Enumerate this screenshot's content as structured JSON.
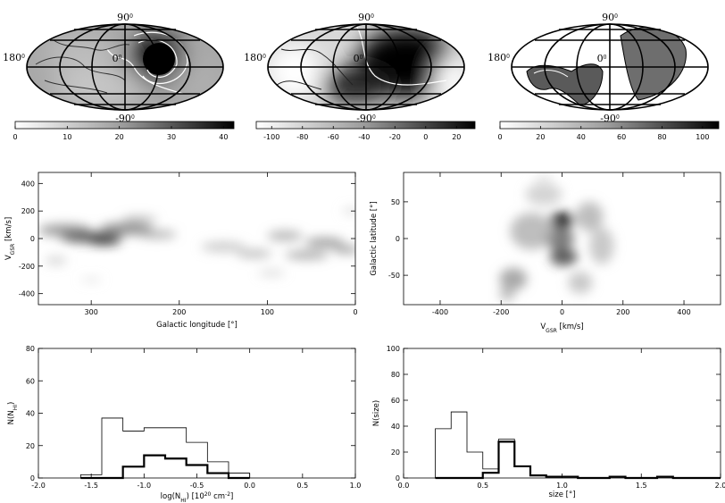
{
  "sky_maps": [
    {
      "labels": {
        "top": "90",
        "bottom": "-90",
        "left": "180",
        "center": "0",
        "deg": "0"
      },
      "colorbar": {
        "ticks": [
          "0",
          "10",
          "20",
          "30",
          "40"
        ],
        "range": [
          0,
          42
        ]
      }
    },
    {
      "labels": {
        "top": "90",
        "bottom": "-90",
        "left": "180",
        "center": "0",
        "deg": "0"
      },
      "colorbar": {
        "ticks": [
          "-100",
          "-80",
          "-60",
          "-40",
          "-20",
          "0",
          "20"
        ],
        "range": [
          -110,
          32
        ]
      }
    },
    {
      "labels": {
        "top": "90",
        "bottom": "-90",
        "left": "180",
        "center": "0",
        "deg": "0"
      },
      "colorbar": {
        "ticks": [
          "0",
          "20",
          "40",
          "60",
          "80",
          "100"
        ],
        "range": [
          0,
          108
        ]
      }
    }
  ],
  "chart_data": [
    {
      "type": "heatmap",
      "xlabel": "Galactic longitude [°]",
      "ylabel": "V",
      "ylabel_sub": "GSR",
      "ylabel_unit": "[km/s]",
      "xlim": [
        360,
        0
      ],
      "ylim": [
        -480,
        480
      ],
      "xticks": [
        300,
        200,
        100,
        0
      ],
      "yticks": [
        400,
        200,
        0,
        -200,
        -400
      ],
      "blobs": [
        {
          "x": 330,
          "y": 60,
          "sx": 30,
          "sy": 45,
          "w": 0.45
        },
        {
          "x": 300,
          "y": 10,
          "sx": 35,
          "sy": 40,
          "w": 0.75
        },
        {
          "x": 285,
          "y": -20,
          "sx": 18,
          "sy": 25,
          "w": 0.9
        },
        {
          "x": 260,
          "y": 70,
          "sx": 30,
          "sy": 45,
          "w": 0.5
        },
        {
          "x": 245,
          "y": 140,
          "sx": 20,
          "sy": 25,
          "w": 0.3
        },
        {
          "x": 225,
          "y": 30,
          "sx": 22,
          "sy": 30,
          "w": 0.35
        },
        {
          "x": 340,
          "y": -160,
          "sx": 12,
          "sy": 30,
          "w": 0.2
        },
        {
          "x": 300,
          "y": -300,
          "sx": 12,
          "sy": 15,
          "w": 0.15
        },
        {
          "x": 150,
          "y": -60,
          "sx": 25,
          "sy": 35,
          "w": 0.25
        },
        {
          "x": 115,
          "y": -110,
          "sx": 20,
          "sy": 30,
          "w": 0.3
        },
        {
          "x": 80,
          "y": 20,
          "sx": 20,
          "sy": 35,
          "w": 0.35
        },
        {
          "x": 55,
          "y": -120,
          "sx": 25,
          "sy": 30,
          "w": 0.4
        },
        {
          "x": 35,
          "y": -30,
          "sx": 22,
          "sy": 35,
          "w": 0.45
        },
        {
          "x": 10,
          "y": -80,
          "sx": 15,
          "sy": 30,
          "w": 0.4
        },
        {
          "x": 5,
          "y": 200,
          "sx": 10,
          "sy": 25,
          "w": 0.15
        },
        {
          "x": 95,
          "y": -250,
          "sx": 15,
          "sy": 20,
          "w": 0.2
        }
      ]
    },
    {
      "type": "heatmap",
      "xlabel": "V",
      "xlabel_sub": "GSR",
      "xlabel_unit": "[km/s]",
      "ylabel": "Galactic latitude [°]",
      "xlim": [
        -520,
        520
      ],
      "ylim": [
        -90,
        90
      ],
      "xticks": [
        -400,
        -200,
        0,
        200,
        400
      ],
      "yticks": [
        50,
        0,
        -50
      ],
      "blobs": [
        {
          "x": 0,
          "y": 25,
          "sx": 40,
          "sy": 12,
          "w": 0.95
        },
        {
          "x": -10,
          "y": 0,
          "sx": 50,
          "sy": 15,
          "w": 0.6
        },
        {
          "x": 5,
          "y": -25,
          "sx": 45,
          "sy": 12,
          "w": 0.75
        },
        {
          "x": -100,
          "y": 10,
          "sx": 70,
          "sy": 25,
          "w": 0.3
        },
        {
          "x": -160,
          "y": -55,
          "sx": 45,
          "sy": 15,
          "w": 0.4
        },
        {
          "x": -180,
          "y": -75,
          "sx": 25,
          "sy": 10,
          "w": 0.3
        },
        {
          "x": 90,
          "y": 30,
          "sx": 45,
          "sy": 20,
          "w": 0.3
        },
        {
          "x": 130,
          "y": -10,
          "sx": 40,
          "sy": 25,
          "w": 0.25
        },
        {
          "x": -60,
          "y": 60,
          "sx": 60,
          "sy": 15,
          "w": 0.2
        },
        {
          "x": 60,
          "y": -60,
          "sx": 40,
          "sy": 15,
          "w": 0.25
        },
        {
          "x": -60,
          "y": 80,
          "sx": 30,
          "sy": 8,
          "w": 0.1
        }
      ]
    },
    {
      "type": "bar",
      "xlabel": "log(N",
      "xlabel_sub": "HI",
      "xlabel_unit": ") [10",
      "xlabel_sup": "20",
      "xlabel_tail": " cm",
      "xlabel_sup2": "-2",
      "xlabel_end": "]",
      "ylabel": "N(N",
      "ylabel_sub": "HI",
      "ylabel_end": ")",
      "xlim": [
        -2.0,
        1.0
      ],
      "ylim": [
        0,
        80
      ],
      "xticks": [
        "-2.0",
        "-1.5",
        "-1.0",
        "-0.5",
        "0.0",
        "0.5",
        "1.0"
      ],
      "yticks": [
        "0",
        "20",
        "40",
        "60",
        "80"
      ],
      "bin_edges": [
        -1.6,
        -1.4,
        -1.2,
        -1.0,
        -0.8,
        -0.6,
        -0.4,
        -0.2,
        0.0
      ],
      "series": [
        {
          "values": [
            2,
            37,
            29,
            31,
            31,
            22,
            10,
            3
          ]
        },
        {
          "values": [
            0,
            0,
            7,
            14,
            12,
            8,
            3,
            0
          ]
        }
      ]
    },
    {
      "type": "bar",
      "xlabel": "size [°]",
      "ylabel": "N(size)",
      "xlim": [
        0.0,
        2.0
      ],
      "ylim": [
        0,
        100
      ],
      "xticks": [
        "0.0",
        "0.5",
        "1.0",
        "1.5",
        "2.0"
      ],
      "yticks": [
        "0",
        "20",
        "40",
        "60",
        "80",
        "100"
      ],
      "bin_edges": [
        0.2,
        0.3,
        0.4,
        0.5,
        0.6,
        0.7,
        0.8,
        0.9,
        1.0,
        1.1,
        1.2,
        1.3,
        1.4,
        1.5,
        1.6,
        1.7,
        1.8,
        1.9,
        2.0
      ],
      "series": [
        {
          "values": [
            38,
            51,
            20,
            7,
            30,
            9,
            2,
            1,
            1,
            0,
            0,
            1,
            0,
            0,
            1,
            0,
            0,
            0
          ]
        },
        {
          "values": [
            0,
            0,
            0,
            4,
            28,
            9,
            2,
            1,
            1,
            0,
            0,
            1,
            0,
            0,
            1,
            0,
            0,
            0
          ]
        }
      ]
    }
  ]
}
